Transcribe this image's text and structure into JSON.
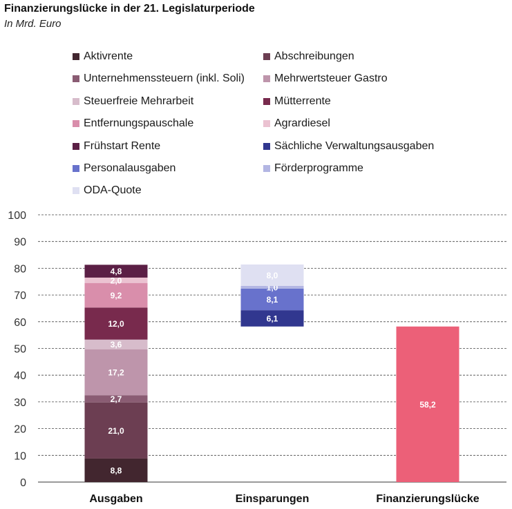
{
  "title": "Finanzierungslücke in der 21. Legislaturperiode",
  "subtitle": "In Mrd. Euro",
  "legend": [
    {
      "name": "Aktivrente",
      "color": "#42262f"
    },
    {
      "name": "Abschreibungen",
      "color": "#6c3e52"
    },
    {
      "name": "Unternehmenssteuern (inkl. Soli)",
      "color": "#8a5c73"
    },
    {
      "name": "Mehrwertsteuer Gastro",
      "color": "#be95ab"
    },
    {
      "name": "Steuerfreie Mehrarbeit",
      "color": "#d7bccb"
    },
    {
      "name": "Mütterrente",
      "color": "#782a4d"
    },
    {
      "name": "Entfernungspauschale",
      "color": "#d98eab"
    },
    {
      "name": "Agrardiesel",
      "color": "#ebc2d1"
    },
    {
      "name": "Frühstart Rente",
      "color": "#5b1f45"
    },
    {
      "name": "Sächliche Verwaltungsausgaben",
      "color": "#31378f"
    },
    {
      "name": "Personalausgaben",
      "color": "#6872cc"
    },
    {
      "name": "Förderprogramme",
      "color": "#b3b6e3"
    },
    {
      "name": "ODA-Quote",
      "color": "#dfe0f2"
    }
  ],
  "chart_data": {
    "type": "bar",
    "stacked": true,
    "waterfall": true,
    "title": "Finanzierungslücke in der 21. Legislaturperiode",
    "subtitle": "In Mrd. Euro",
    "categories": [
      "Ausgaben",
      "Einsparungen",
      "Finanzierungslücke"
    ],
    "ylim": [
      0,
      100
    ],
    "yticks": [
      "0",
      "10",
      "20",
      "30",
      "40",
      "50",
      "60",
      "70",
      "80",
      "90",
      "100"
    ],
    "grid": true,
    "legend_position": "top",
    "bars": [
      {
        "category": "Ausgaben",
        "base": 0,
        "segments": [
          {
            "name": "Aktivrente",
            "value": 8.8,
            "label": "8,8"
          },
          {
            "name": "Abschreibungen",
            "value": 21.0,
            "label": "21,0"
          },
          {
            "name": "Unternehmenssteuern (inkl. Soli)",
            "value": 2.7,
            "label": "2,7"
          },
          {
            "name": "Mehrwertsteuer Gastro",
            "value": 17.2,
            "label": "17,2"
          },
          {
            "name": "Steuerfreie Mehrarbeit",
            "value": 3.6,
            "label": "3,6"
          },
          {
            "name": "Mütterrente",
            "value": 12.0,
            "label": "12,0"
          },
          {
            "name": "Entfernungspauschale",
            "value": 9.2,
            "label": "9,2"
          },
          {
            "name": "Agrardiesel",
            "value": 2.0,
            "label": "2,0"
          },
          {
            "name": "Frühstart Rente",
            "value": 4.8,
            "label": "4,8"
          }
        ]
      },
      {
        "category": "Einsparungen",
        "base": 58.2,
        "segments": [
          {
            "name": "Sächliche Verwaltungsausgaben",
            "value": 6.1,
            "label": "6,1"
          },
          {
            "name": "Personalausgaben",
            "value": 8.1,
            "label": "8,1"
          },
          {
            "name": "Förderprogramme",
            "value": 1.0,
            "label": "1,0"
          },
          {
            "name": "ODA-Quote",
            "value": 8.0,
            "label": "8,0"
          }
        ]
      },
      {
        "category": "Finanzierungslücke",
        "base": 0,
        "segments": [
          {
            "name": "Finanzierungslücke",
            "value": 58.2,
            "label": "58,2",
            "color": "#ec6078"
          }
        ]
      }
    ]
  }
}
